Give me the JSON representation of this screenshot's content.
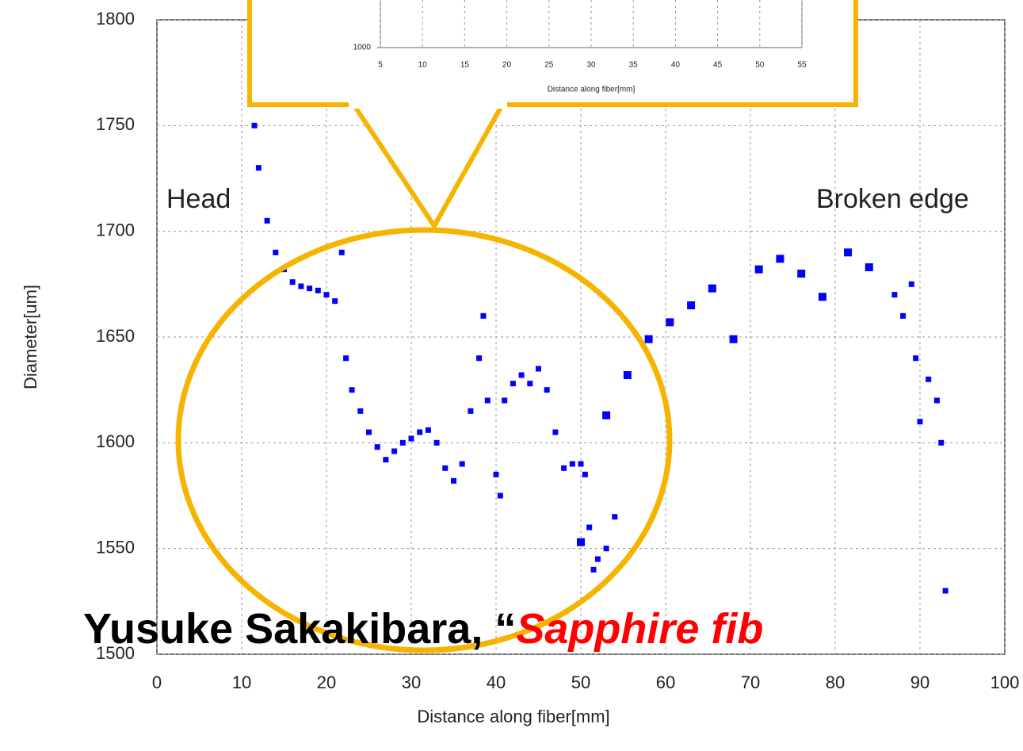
{
  "chart_data": [
    {
      "type": "scatter",
      "xlabel": "Distance along fiber[mm]",
      "ylabel": "Diameter[um]",
      "xlim": [
        0,
        100
      ],
      "xticks": [
        0,
        10,
        20,
        30,
        40,
        50,
        60,
        70,
        80,
        90,
        100
      ],
      "ylim": [
        1500,
        1800
      ],
      "yticks": [
        1500,
        1550,
        1600,
        1650,
        1700,
        1750,
        1800
      ],
      "grid": true,
      "annotations": [
        "Head",
        "Broken edge"
      ],
      "series": [
        {
          "color": "#0000ff",
          "x": [
            11,
            11.5,
            12,
            13,
            14,
            15,
            16,
            17,
            18,
            19,
            20,
            21,
            21.8,
            22.3,
            23,
            24,
            25,
            26,
            27,
            28,
            29,
            30,
            31,
            32,
            33,
            34,
            35,
            36,
            37,
            38,
            38.5,
            39,
            40,
            40.5,
            41,
            42,
            43,
            44,
            45,
            46,
            47,
            48,
            49,
            50,
            50.5,
            51,
            51.5,
            52,
            53,
            54,
            87,
            88,
            89,
            89.5,
            90,
            91,
            92,
            92.5,
            93
          ],
          "values": [
            1790,
            1750,
            1730,
            1705,
            1690,
            1682,
            1676,
            1674,
            1673,
            1672,
            1670,
            1667,
            1690,
            1640,
            1625,
            1615,
            1605,
            1598,
            1592,
            1596,
            1600,
            1602,
            1605,
            1606,
            1600,
            1588,
            1582,
            1590,
            1615,
            1640,
            1660,
            1620,
            1585,
            1575,
            1620,
            1628,
            1632,
            1628,
            1635,
            1625,
            1605,
            1588,
            1590,
            1590,
            1585,
            1560,
            1540,
            1545,
            1550,
            1565,
            1670,
            1660,
            1675,
            1640,
            1610,
            1630,
            1620,
            1600,
            1530
          ]
        },
        {
          "color": "#0000ff",
          "x": [
            50,
            53,
            55.5,
            58,
            60.5,
            63,
            65.5,
            68,
            71,
            73.5,
            76,
            78.5,
            81.5,
            84
          ],
          "values": [
            1553,
            1613,
            1632,
            1649,
            1657,
            1665,
            1673,
            1649,
            1682,
            1687,
            1680,
            1669,
            1690,
            1683
          ]
        }
      ]
    },
    {
      "type": "line",
      "xlabel": "Distance along fiber[mm]",
      "xlim": [
        5,
        55
      ],
      "xticks": [
        5,
        10,
        15,
        20,
        25,
        30,
        35,
        40,
        45,
        50,
        55
      ],
      "yticks": [
        1000
      ],
      "grid": true
    }
  ],
  "caption": {
    "prefix": "Yusuke Sakakibara, “",
    "emphasis": "Sapphire fib"
  }
}
